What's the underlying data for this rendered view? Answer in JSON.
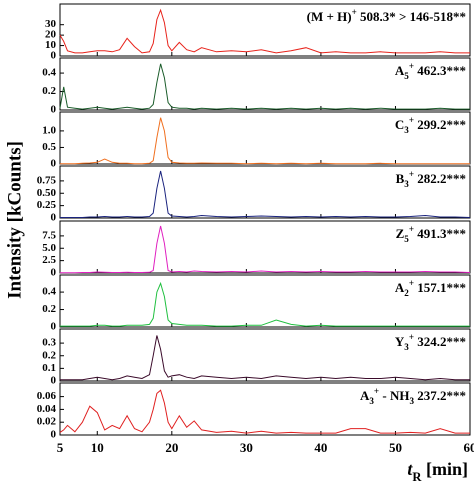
{
  "chart_data": [
    {
      "type": "line",
      "color": "#e8231b",
      "xlim": [
        5,
        60
      ],
      "xticks": [
        5,
        10,
        20,
        30,
        40,
        50,
        60
      ],
      "ylim": [
        0,
        46
      ],
      "yticks": [
        0,
        10,
        20,
        30
      ],
      "label": [
        {
          "text": "(M + H)"
        },
        {
          "text": "+",
          "shift": "super"
        },
        {
          "text": " 508.3* > 146-518**"
        }
      ],
      "x": [
        5,
        5.5,
        6,
        7,
        8,
        9,
        10,
        11,
        12,
        13,
        14,
        15,
        16,
        17,
        17.5,
        18,
        18.5,
        19,
        19.5,
        20,
        21,
        22,
        23,
        24,
        26,
        28,
        30,
        32,
        34,
        36,
        38,
        40,
        42,
        44,
        46,
        48,
        50,
        52,
        54,
        56,
        58,
        60
      ],
      "values": [
        20,
        14,
        5,
        3,
        3,
        4,
        5,
        5,
        4,
        6,
        17,
        9,
        3,
        4,
        12,
        35,
        44,
        32,
        10,
        5,
        13,
        6,
        4,
        8,
        4,
        5,
        4,
        6,
        3,
        5,
        8,
        3,
        4,
        3,
        3,
        4,
        3,
        3,
        3,
        4,
        3,
        3
      ]
    },
    {
      "type": "line",
      "color": "#1a5c2a",
      "xlim": [
        5,
        60
      ],
      "xticks": [
        5,
        10,
        20,
        30,
        40,
        50,
        60
      ],
      "ylim": [
        0,
        0.52
      ],
      "yticks": [
        0,
        0.2,
        0.4
      ],
      "label": [
        {
          "text": "A"
        },
        {
          "text": "5",
          "shift": "sub"
        },
        {
          "text": "+",
          "shift": "super"
        },
        {
          "text": " 462.3***"
        }
      ],
      "x": [
        5,
        5.5,
        6,
        7,
        8,
        9,
        10,
        11,
        12,
        13,
        14,
        15,
        16,
        17,
        17.5,
        18,
        18.5,
        19,
        19.5,
        20,
        21,
        22,
        23,
        24,
        26,
        28,
        30,
        32,
        34,
        36,
        38,
        40,
        42,
        44,
        46,
        48,
        50,
        52,
        54,
        56,
        58,
        60
      ],
      "values": [
        0.02,
        0.25,
        0.03,
        0.02,
        0.01,
        0.02,
        0.03,
        0.02,
        0.01,
        0.02,
        0.03,
        0.02,
        0.01,
        0.02,
        0.06,
        0.3,
        0.5,
        0.35,
        0.08,
        0.03,
        0.02,
        0.02,
        0.01,
        0.02,
        0.01,
        0.02,
        0.01,
        0.02,
        0.01,
        0.02,
        0.01,
        0.02,
        0.01,
        0.02,
        0.01,
        0.02,
        0.01,
        0.01,
        0.01,
        0.02,
        0.01,
        0.01
      ]
    },
    {
      "type": "line",
      "color": "#f07020",
      "xlim": [
        5,
        60
      ],
      "xticks": [
        5,
        10,
        20,
        30,
        40,
        50,
        60
      ],
      "ylim": [
        0,
        1.45
      ],
      "yticks": [
        0,
        0.5,
        {
          "value": 1,
          "label": "1.0"
        }
      ],
      "label": [
        {
          "text": "C"
        },
        {
          "text": "3",
          "shift": "sub"
        },
        {
          "text": "+",
          "shift": "super"
        },
        {
          "text": " 299.2***"
        }
      ],
      "x": [
        5,
        5.5,
        6,
        7,
        8,
        9,
        10,
        11,
        12,
        13,
        14,
        15,
        16,
        17,
        17.5,
        18,
        18.5,
        19,
        19.5,
        20,
        21,
        22,
        23,
        24,
        26,
        28,
        30,
        32,
        34,
        36,
        38,
        40,
        42,
        44,
        46,
        48,
        50,
        52,
        54,
        56,
        58,
        60
      ],
      "values": [
        0.01,
        0.01,
        0.01,
        0.01,
        0.02,
        0.03,
        0.05,
        0.15,
        0.05,
        0.02,
        0.02,
        0.01,
        0.01,
        0.02,
        0.1,
        0.8,
        1.4,
        1.0,
        0.2,
        0.05,
        0.03,
        0.02,
        0.02,
        0.03,
        0.02,
        0.02,
        0.01,
        0.02,
        0.01,
        0.02,
        0.01,
        0.02,
        0.01,
        0.01,
        0.01,
        0.02,
        0.01,
        0.01,
        0.01,
        0.01,
        0.01,
        0.01
      ]
    },
    {
      "type": "line",
      "color": "#1a237e",
      "xlim": [
        5,
        60
      ],
      "xticks": [
        5,
        10,
        20,
        30,
        40,
        50,
        60
      ],
      "ylim": [
        0,
        0.97
      ],
      "yticks": [
        0,
        0.25,
        {
          "value": 0.5,
          "label": "0.50"
        },
        0.75
      ],
      "label": [
        {
          "text": "B"
        },
        {
          "text": "3",
          "shift": "sub"
        },
        {
          "text": "+",
          "shift": "super"
        },
        {
          "text": " 282.2***"
        }
      ],
      "x": [
        5,
        5.5,
        6,
        7,
        8,
        9,
        10,
        11,
        12,
        13,
        14,
        15,
        16,
        17,
        17.5,
        18,
        18.5,
        19,
        19.5,
        20,
        21,
        22,
        23,
        24,
        26,
        28,
        30,
        32,
        34,
        36,
        38,
        40,
        42,
        44,
        46,
        48,
        50,
        52,
        54,
        56,
        58,
        60
      ],
      "values": [
        0.01,
        0.01,
        0.01,
        0.01,
        0.01,
        0.02,
        0.02,
        0.03,
        0.02,
        0.02,
        0.03,
        0.02,
        0.02,
        0.03,
        0.1,
        0.6,
        0.95,
        0.6,
        0.1,
        0.04,
        0.03,
        0.02,
        0.03,
        0.05,
        0.03,
        0.02,
        0.03,
        0.04,
        0.03,
        0.02,
        0.03,
        0.02,
        0.03,
        0.02,
        0.03,
        0.02,
        0.02,
        0.03,
        0.05,
        0.02,
        0.02,
        0.01
      ]
    },
    {
      "type": "line",
      "color": "#e020c0",
      "xlim": [
        5,
        60
      ],
      "xticks": [
        5,
        10,
        20,
        30,
        40,
        50,
        60
      ],
      "ylim": [
        0,
        9.7
      ],
      "yticks": [
        0,
        2.5,
        {
          "value": 5,
          "label": "5.0"
        },
        7.5
      ],
      "label": [
        {
          "text": "Z"
        },
        {
          "text": "5",
          "shift": "sub"
        },
        {
          "text": "+",
          "shift": "super"
        },
        {
          "text": " 491.3***"
        }
      ],
      "x": [
        5,
        5.5,
        6,
        7,
        8,
        9,
        10,
        11,
        12,
        13,
        14,
        15,
        16,
        17,
        17.5,
        18,
        18.5,
        19,
        19.5,
        20,
        21,
        22,
        23,
        24,
        26,
        28,
        30,
        32,
        34,
        36,
        38,
        40,
        42,
        44,
        46,
        48,
        50,
        52,
        54,
        56,
        58,
        60
      ],
      "values": [
        0.05,
        0.05,
        0.05,
        0.05,
        0.1,
        0.1,
        0.2,
        0.15,
        0.1,
        0.1,
        0.15,
        0.1,
        0.1,
        0.15,
        0.5,
        6,
        9.5,
        6,
        0.5,
        0.2,
        0.3,
        0.2,
        0.4,
        0.3,
        0.2,
        0.3,
        0.2,
        0.4,
        0.2,
        0.3,
        0.2,
        0.3,
        0.2,
        0.2,
        0.3,
        0.2,
        0.2,
        0.2,
        0.3,
        0.2,
        0.2,
        0.1
      ]
    },
    {
      "type": "line",
      "color": "#20c040",
      "xlim": [
        5,
        60
      ],
      "xticks": [
        5,
        10,
        20,
        30,
        40,
        50,
        60
      ],
      "ylim": [
        0,
        0.55
      ],
      "yticks": [
        0,
        0.2,
        0.4
      ],
      "label": [
        {
          "text": "A"
        },
        {
          "text": "2",
          "shift": "sub"
        },
        {
          "text": "+",
          "shift": "super"
        },
        {
          "text": " 157.1***"
        }
      ],
      "x": [
        5,
        5.5,
        6,
        7,
        8,
        9,
        10,
        11,
        12,
        13,
        14,
        15,
        16,
        17,
        17.5,
        18,
        18.5,
        19,
        19.5,
        20,
        21,
        22,
        23,
        24,
        26,
        28,
        30,
        32,
        34,
        36,
        38,
        40,
        42,
        44,
        46,
        48,
        50,
        52,
        54,
        56,
        58,
        60
      ],
      "values": [
        0.01,
        0.01,
        0.01,
        0.01,
        0.01,
        0.01,
        0.02,
        0.02,
        0.01,
        0.01,
        0.02,
        0.02,
        0.02,
        0.03,
        0.1,
        0.4,
        0.5,
        0.35,
        0.08,
        0.04,
        0.03,
        0.02,
        0.02,
        0.02,
        0.01,
        0.01,
        0.02,
        0.02,
        0.08,
        0.03,
        0.01,
        0.02,
        0.01,
        0.01,
        0.01,
        0.01,
        0.01,
        0.01,
        0.01,
        0.01,
        0.01,
        0.01
      ]
    },
    {
      "type": "line",
      "color": "#3a0a2a",
      "xlim": [
        5,
        60
      ],
      "xticks": [
        5,
        10,
        20,
        30,
        40,
        50,
        60
      ],
      "ylim": [
        0,
        0.38
      ],
      "yticks": [
        0,
        0.1,
        0.2,
        0.3
      ],
      "label": [
        {
          "text": "Y"
        },
        {
          "text": "3",
          "shift": "sub"
        },
        {
          "text": "+",
          "shift": "super"
        },
        {
          "text": " 324.2***"
        }
      ],
      "x": [
        5,
        5.5,
        6,
        7,
        8,
        9,
        10,
        11,
        12,
        13,
        14,
        15,
        16,
        17,
        17.5,
        18,
        18.5,
        19,
        19.5,
        20,
        21,
        22,
        23,
        24,
        26,
        28,
        30,
        32,
        34,
        36,
        38,
        40,
        42,
        44,
        46,
        48,
        50,
        52,
        54,
        56,
        58,
        60
      ],
      "values": [
        0.01,
        0.01,
        0.01,
        0.01,
        0.01,
        0.02,
        0.03,
        0.02,
        0.01,
        0.02,
        0.04,
        0.03,
        0.02,
        0.05,
        0.2,
        0.36,
        0.25,
        0.08,
        0.03,
        0.04,
        0.05,
        0.03,
        0.02,
        0.04,
        0.03,
        0.02,
        0.03,
        0.02,
        0.04,
        0.03,
        0.02,
        0.03,
        0.02,
        0.03,
        0.02,
        0.02,
        0.03,
        0.02,
        0.01,
        0.02,
        0.01,
        0.01
      ]
    },
    {
      "type": "line",
      "color": "#e02020",
      "xlim": [
        5,
        60
      ],
      "xticks": [
        5,
        10,
        20,
        30,
        40,
        50,
        60
      ],
      "ylim": [
        0,
        0.075
      ],
      "yticks": [
        0,
        0.02,
        0.04,
        0.06
      ],
      "label": [
        {
          "text": "A"
        },
        {
          "text": "3",
          "shift": "sub"
        },
        {
          "text": "+",
          "shift": "super"
        },
        {
          "text": " - NH"
        },
        {
          "text": "3",
          "shift": "sub"
        },
        {
          "text": " 237.2***"
        }
      ],
      "x": [
        5,
        5.5,
        6,
        7,
        8,
        9,
        10,
        11,
        12,
        13,
        14,
        15,
        16,
        17,
        17.5,
        18,
        18.5,
        19,
        19.5,
        20,
        21,
        22,
        23,
        24,
        26,
        28,
        30,
        32,
        34,
        36,
        38,
        40,
        42,
        44,
        46,
        48,
        50,
        52,
        54,
        56,
        58,
        60
      ],
      "values": [
        0.004,
        0.008,
        0.015,
        0.005,
        0.02,
        0.045,
        0.035,
        0.008,
        0.015,
        0.01,
        0.03,
        0.01,
        0.005,
        0.02,
        0.04,
        0.065,
        0.07,
        0.05,
        0.02,
        0.01,
        0.03,
        0.012,
        0.022,
        0.008,
        0.004,
        0.006,
        0.003,
        0.006,
        0.003,
        0.004,
        0.003,
        0.003,
        0.003,
        0.01,
        0.01,
        0.003,
        0.003,
        0.004,
        0.003,
        0.01,
        0.003,
        0.003
      ],
      "xlabel": [
        {
          "text": "t"
        },
        {
          "text": "R",
          "shift": "sub"
        },
        {
          "text": " [min]"
        }
      ]
    }
  ],
  "ylabel": "Intensity [kCounts]"
}
